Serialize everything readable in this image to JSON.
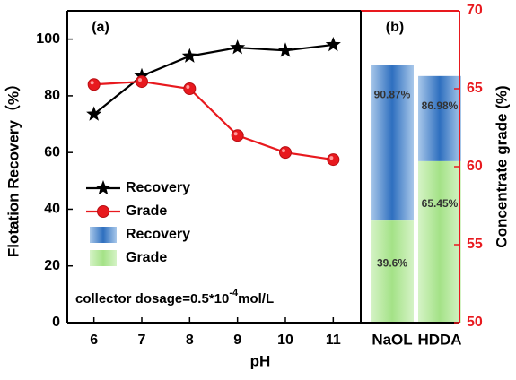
{
  "chart_data": [
    {
      "panel": "(a)",
      "type": "line",
      "xlabel": "pH",
      "ylabel": "Flotation Recovery（%）",
      "ylabel_right": "Concentrate grade (%)",
      "x": [
        6,
        7,
        8,
        9,
        10,
        11
      ],
      "xticks": [
        "6",
        "7",
        "8",
        "9",
        "10",
        "11"
      ],
      "ylim": [
        0,
        110
      ],
      "yticks": [
        0,
        20,
        40,
        60,
        80,
        100
      ],
      "series": [
        {
          "name": "Recovery",
          "values": [
            73.5,
            87,
            94,
            97,
            96,
            98
          ],
          "color": "#000000",
          "marker": "star"
        },
        {
          "name": "Grade",
          "values": [
            84,
            85,
            82.5,
            66,
            60,
            57.5
          ],
          "color": "#e8191e",
          "marker": "circle"
        }
      ],
      "legend": [
        {
          "label": "Recovery",
          "kind": "line-star"
        },
        {
          "label": "Grade",
          "kind": "line-circle"
        },
        {
          "label": "Recovery",
          "kind": "blue-bar"
        },
        {
          "label": "Grade",
          "kind": "green-bar"
        }
      ],
      "legend_placement": "left",
      "annotation": "collector dosage=0.5*10",
      "annotation_exp": "-4",
      "annotation_unit": "mol/L",
      "grid": false
    },
    {
      "panel": "(b)",
      "type": "bar",
      "categories": [
        "NaOL",
        "HDDA"
      ],
      "series": [
        {
          "name": "Recovery",
          "values": [
            90.87,
            86.98
          ],
          "labels": [
            "90.87%",
            "86.98%"
          ],
          "color": "#2e6fbf"
        },
        {
          "name": "Grade",
          "values": [
            39.6,
            65.45
          ],
          "labels": [
            "39.6%",
            "65.45%"
          ],
          "color": "#9ede80"
        }
      ],
      "ylim_right": [
        50,
        70
      ],
      "yticks_right": [
        50,
        55,
        60,
        65,
        70
      ],
      "grid": false
    }
  ]
}
